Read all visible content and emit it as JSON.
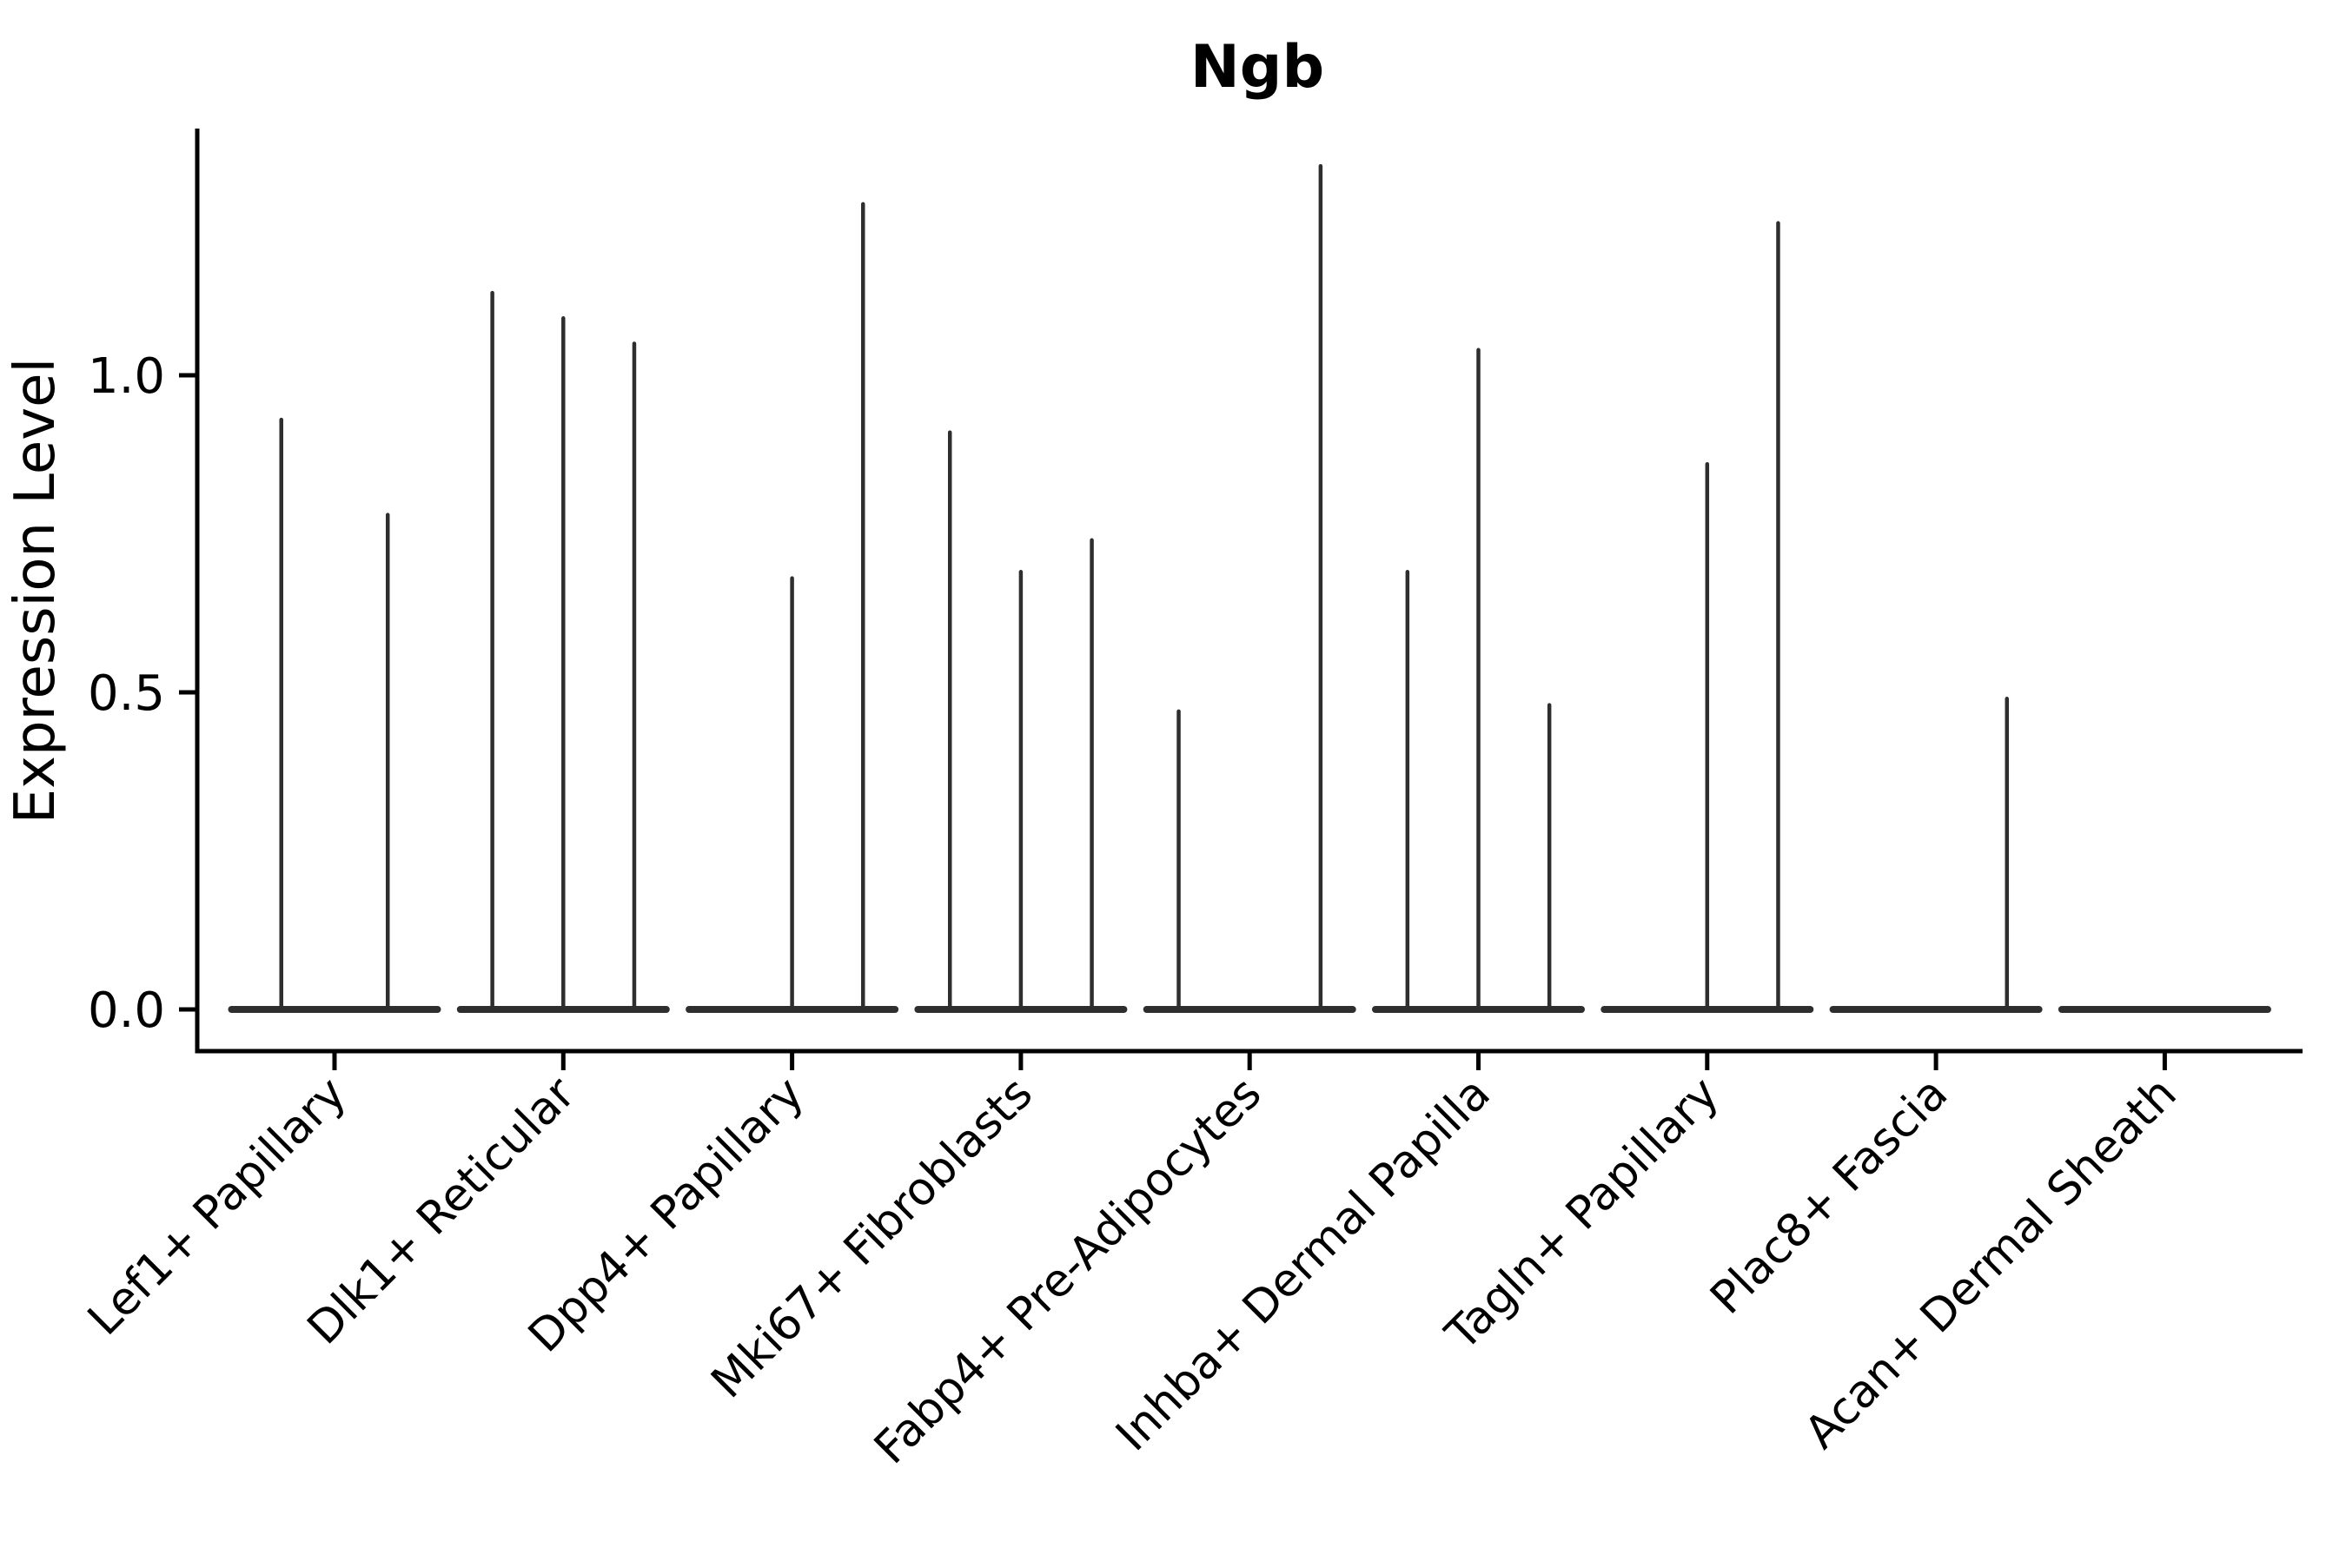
{
  "chart_data": {
    "type": "violin",
    "title": "Ngb",
    "xlabel": "",
    "ylabel": "Expression Level",
    "ylim": [
      -0.07,
      1.39
    ],
    "yticks": [
      {
        "label": "0.0",
        "value": 0.0
      },
      {
        "label": "0.5",
        "value": 0.5
      },
      {
        "label": "1.0",
        "value": 1.0
      }
    ],
    "categories": [
      "Lef1+ Papillary",
      "Dlk1+ Reticular",
      "Dpp4+ Papillary",
      "Mki67+ Fibroblasts",
      "Fabp4+ Pre-Adipocytes",
      "Inhba+ Dermal Papilla",
      "Tagln+ Papillary",
      "Plac8+ Fascia",
      "Acan+ Dermal Sheath"
    ],
    "groups": [
      {
        "category": "Lef1+ Papillary",
        "spike_maxima": [
          0.93,
          0.78
        ]
      },
      {
        "category": "Dlk1+ Reticular",
        "spike_maxima": [
          1.13,
          1.09,
          1.05
        ]
      },
      {
        "category": "Dpp4+ Papillary",
        "spike_maxima": [
          0,
          0.68,
          1.27
        ]
      },
      {
        "category": "Mki67+ Fibroblasts",
        "spike_maxima": [
          0.91,
          0.69,
          0.74
        ]
      },
      {
        "category": "Fabp4+ Pre-Adipocytes",
        "spike_maxima": [
          0.47,
          0,
          1.33
        ]
      },
      {
        "category": "Inhba+ Dermal Papilla",
        "spike_maxima": [
          0.69,
          1.04,
          0.48
        ]
      },
      {
        "category": "Tagln+ Papillary",
        "spike_maxima": [
          0,
          0.86,
          1.24
        ]
      },
      {
        "category": "Plac8+ Fascia",
        "spike_maxima": [
          0,
          0,
          0.49
        ]
      },
      {
        "category": "Acan+ Dermal Sheath",
        "spike_maxima": [
          0,
          0,
          0
        ]
      }
    ],
    "note": "Needle-thin violin plot: each category shows 2-3 violins collapsed to vertical spikes with a flat widened base at 0. Values are the spike maxima (expression level). Groups with 0 entries render as flat baseline only.",
    "legend": "none",
    "grid": "off",
    "colors": {
      "line": "#2e2e2e",
      "axis": "#000000",
      "background": "#ffffff"
    }
  }
}
